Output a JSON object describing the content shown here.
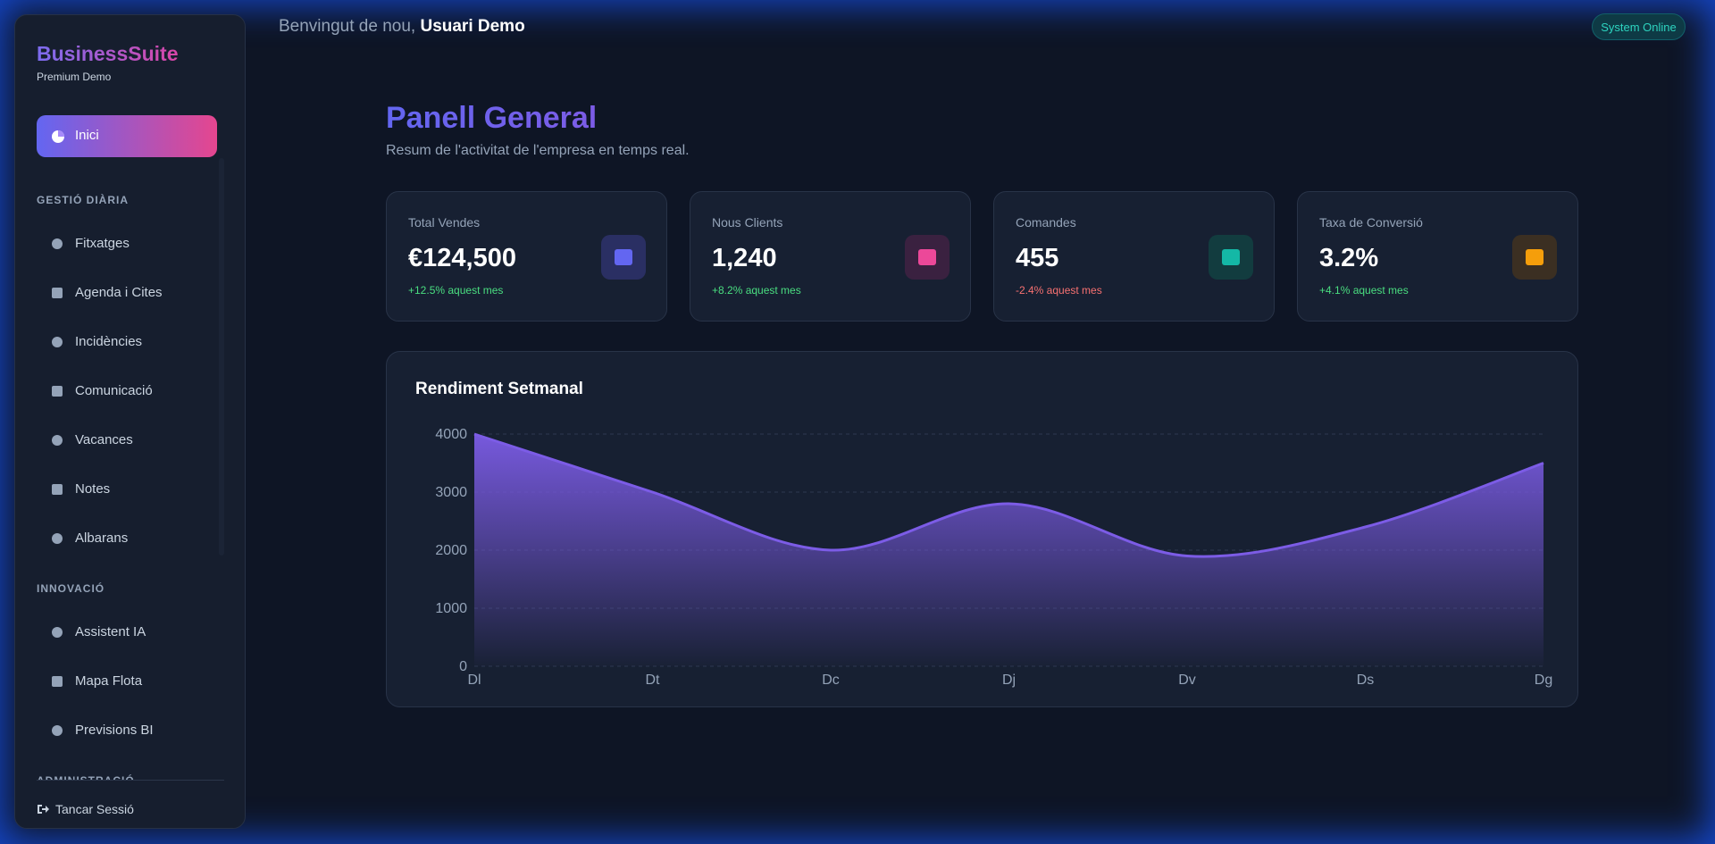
{
  "sidebar": {
    "brand": "BusinessSuite",
    "subtitle": "Premium Demo",
    "active": "Inici",
    "sections": [
      {
        "title": "GESTIÓ DIÀRIA",
        "items": [
          "Fitxatges",
          "Agenda i Cites",
          "Incidències",
          "Comunicació",
          "Vacances",
          "Notes",
          "Albarans"
        ]
      },
      {
        "title": "INNOVACIÓ",
        "items": [
          "Assistent IA",
          "Mapa Flota",
          "Previsions BI"
        ]
      },
      {
        "title": "ADMINISTRACIÓ"
      }
    ],
    "logout": "Tancar Sessió"
  },
  "header": {
    "greeting": "Benvingut de nou,",
    "user": "Usuari Demo",
    "status": "System Online"
  },
  "dashboard": {
    "title": "Panell General",
    "subtitle": "Resum de l'activitat de l'empresa en temps real.",
    "cards": [
      {
        "label": "Total Vendes",
        "value": "€124,500",
        "change": "+12.5% aquest mes"
      },
      {
        "label": "Nous Clients",
        "value": "1,240",
        "change": "+8.2% aquest mes"
      },
      {
        "label": "Comandes",
        "value": "455",
        "change": "-2.4% aquest mes"
      },
      {
        "label": "Taxa de Conversió",
        "value": "3.2%",
        "change": "+4.1% aquest mes"
      }
    ]
  },
  "chart_data": {
    "type": "area",
    "title": "Rendiment Setmanal",
    "categories": [
      "Dl",
      "Dt",
      "Dc",
      "Dj",
      "Dv",
      "Ds",
      "Dg"
    ],
    "values": [
      4000,
      3000,
      2000,
      2800,
      1900,
      2400,
      3500
    ],
    "color": "#7c5ce6",
    "ylim": [
      0,
      4000
    ],
    "yticks": [
      0,
      1000,
      2000,
      3000,
      4000
    ],
    "grid": true
  }
}
